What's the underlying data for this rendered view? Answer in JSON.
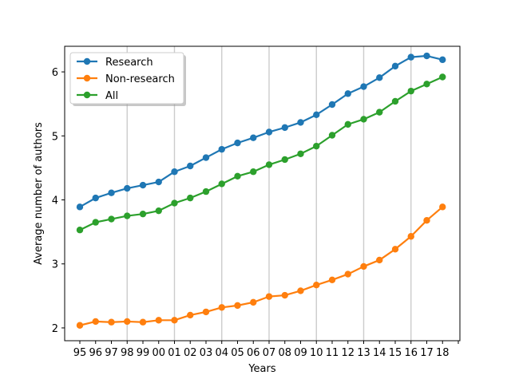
{
  "chart_data": {
    "type": "line",
    "title": "",
    "xlabel": "Years",
    "ylabel": "Average number of authors",
    "categories": [
      "95",
      "96",
      "97",
      "98",
      "99",
      "00",
      "01",
      "02",
      "03",
      "04",
      "05",
      "06",
      "07",
      "08",
      "09",
      "10",
      "11",
      "12",
      "13",
      "14",
      "15",
      "16",
      "17",
      "18"
    ],
    "yticks": [
      2,
      3,
      4,
      5,
      6
    ],
    "ylim": [
      1.8,
      6.4
    ],
    "vertical_gridlines_at": [
      "98",
      "01",
      "04",
      "07",
      "10",
      "13",
      "16"
    ],
    "legend_position": "upper-left",
    "series": [
      {
        "name": "Research",
        "color": "#1f77b4",
        "values": [
          3.89,
          4.03,
          4.11,
          4.18,
          4.23,
          4.28,
          4.44,
          4.53,
          4.66,
          4.79,
          4.89,
          4.97,
          5.06,
          5.13,
          5.21,
          5.33,
          5.49,
          5.66,
          5.77,
          5.91,
          6.09,
          6.23,
          6.25,
          6.19
        ]
      },
      {
        "name": "Non-research",
        "color": "#ff7f0e",
        "values": [
          2.04,
          2.1,
          2.09,
          2.1,
          2.09,
          2.12,
          2.12,
          2.2,
          2.25,
          2.32,
          2.35,
          2.4,
          2.49,
          2.51,
          2.58,
          2.67,
          2.75,
          2.84,
          2.96,
          3.06,
          3.23,
          3.43,
          3.68,
          3.89
        ]
      },
      {
        "name": "All",
        "color": "#2ca02c",
        "values": [
          3.53,
          3.65,
          3.7,
          3.75,
          3.78,
          3.83,
          3.95,
          4.03,
          4.13,
          4.25,
          4.37,
          4.44,
          4.55,
          4.63,
          4.72,
          4.84,
          5.01,
          5.18,
          5.26,
          5.37,
          5.54,
          5.7,
          5.81,
          5.92
        ]
      }
    ]
  }
}
